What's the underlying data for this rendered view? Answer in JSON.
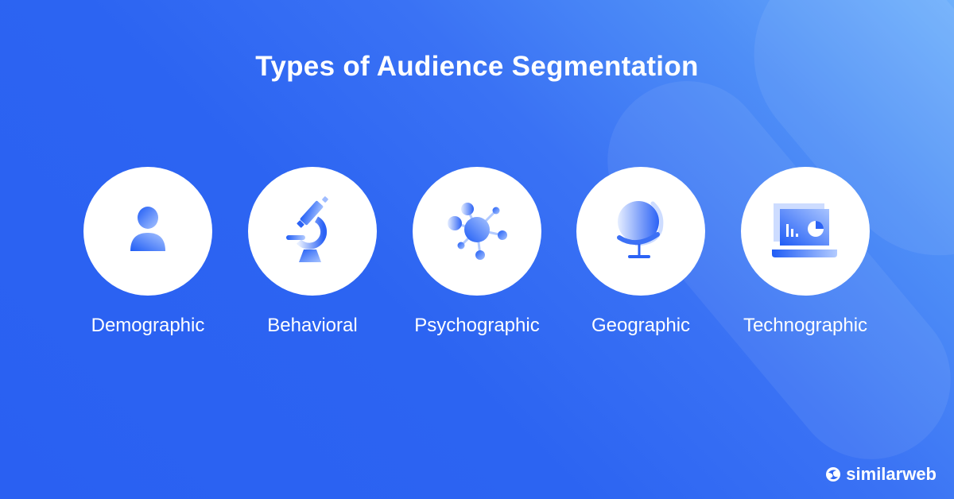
{
  "title": "Types of Audience Segmentation",
  "items": [
    {
      "label": "Demographic",
      "icon": "person-icon"
    },
    {
      "label": "Behavioral",
      "icon": "microscope-icon"
    },
    {
      "label": "Psychographic",
      "icon": "molecule-icon"
    },
    {
      "label": "Geographic",
      "icon": "globe-icon"
    },
    {
      "label": "Technographic",
      "icon": "laptop-chart-icon"
    }
  ],
  "brand": {
    "name": "similarweb"
  },
  "colors": {
    "background": "#2a60f2",
    "accent": "#2b62f5",
    "circle": "#ffffff"
  }
}
